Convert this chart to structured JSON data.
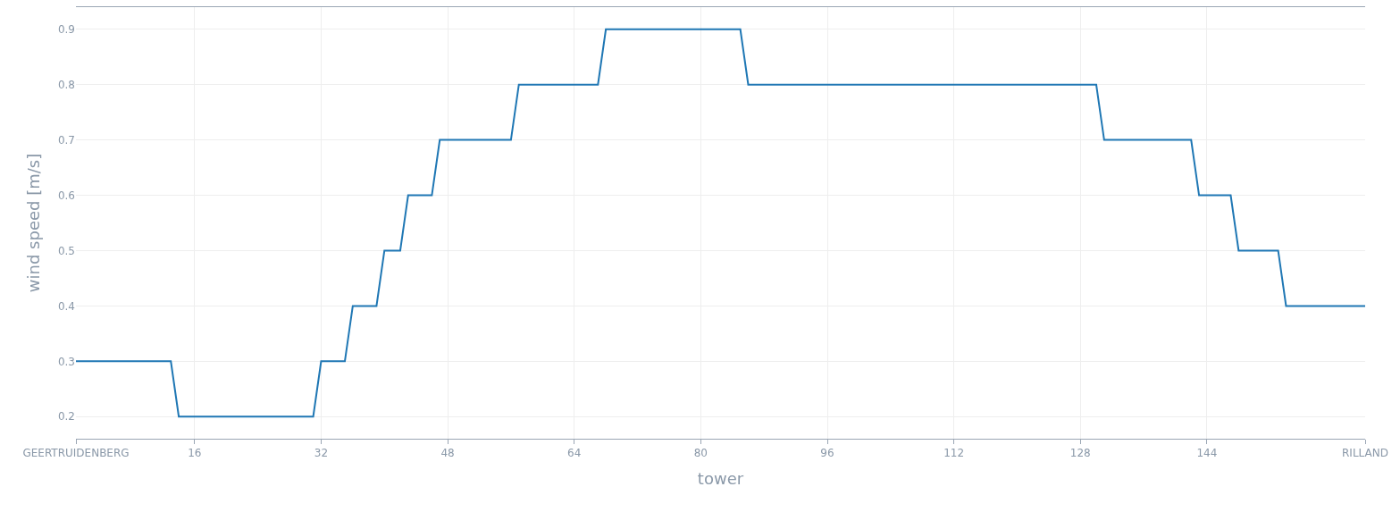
{
  "chart_data": {
    "type": "line",
    "xlabel": "tower",
    "ylabel": "wind speed [m/s]",
    "x": [
      1,
      13,
      14,
      31,
      32,
      35,
      36,
      39,
      40,
      42,
      43,
      46,
      47,
      56,
      57,
      67,
      68,
      85,
      86,
      130,
      131,
      142,
      143,
      147,
      148,
      153,
      154,
      164
    ],
    "series": [
      {
        "color": "#1f77b4",
        "values": [
          0.3,
          0.3,
          0.2,
          0.2,
          0.3,
          0.3,
          0.4,
          0.4,
          0.5,
          0.5,
          0.6,
          0.6,
          0.7,
          0.7,
          0.8,
          0.8,
          0.9,
          0.9,
          0.8,
          0.8,
          0.7,
          0.7,
          0.6,
          0.6,
          0.5,
          0.5,
          0.4,
          0.4
        ]
      }
    ],
    "xlim": [
      1,
      164
    ],
    "xticks": [
      {
        "value": 1,
        "label": "GEERTRUIDENBERG"
      },
      16,
      32,
      48,
      64,
      80,
      96,
      112,
      128,
      144,
      {
        "value": 164,
        "label": "RILLAND"
      }
    ],
    "ylim": [
      0.16,
      0.94
    ],
    "yticks": [
      0.2,
      0.3,
      0.4,
      0.5,
      0.6,
      0.7,
      0.8,
      0.9
    ],
    "grid": true,
    "marker": "none",
    "line_style": "solid"
  }
}
